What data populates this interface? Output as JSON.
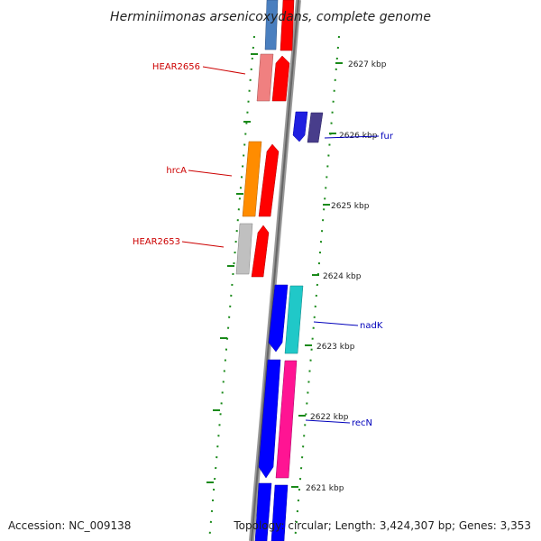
{
  "title": "Herminiimonas arsenicoxydans, complete genome",
  "accession_text": "Accession: NC_009138",
  "topology_text": "Topology: circular; Length: 3,424,307 bp; Genes: 3,353",
  "kbp_labels": [
    "2627 kbp",
    "2626 kbp",
    "2625 kbp",
    "2624 kbp",
    "2623 kbp",
    "2622 kbp",
    "2621 kbp"
  ],
  "gene_labels": {
    "hear2656": "HEAR2656",
    "hrca": "hrcA",
    "hear2653": "HEAR2653",
    "fur": "fur",
    "nadk": "nadK",
    "recn": "recN"
  },
  "colors": {
    "backbone": "#808080",
    "tick": "#1a8a1a",
    "label_red": "#cc0000",
    "label_blue": "#0000bb",
    "red": "#ff0000",
    "blue": "#0000ff",
    "steelblue": "#4a7fbf",
    "salmon": "#f08080",
    "orange": "#ff8c00",
    "grey": "#c0c0c0",
    "navy": "#2200ee",
    "slateblue": "#483d8b",
    "cyan": "#20c8c8",
    "pink": "#ff1493"
  }
}
